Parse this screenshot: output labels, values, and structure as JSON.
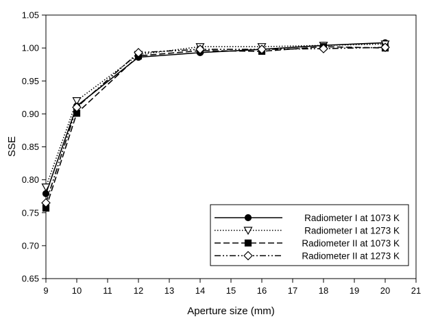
{
  "chart_data": {
    "type": "line",
    "title": "",
    "xlabel": "Aperture size (mm)",
    "ylabel": "SSE",
    "xlim": [
      9,
      21
    ],
    "ylim": [
      0.65,
      1.05
    ],
    "x_ticks": [
      9,
      10,
      11,
      12,
      13,
      14,
      15,
      16,
      17,
      18,
      19,
      20,
      21
    ],
    "y_ticks": [
      "0.65",
      "0.70",
      "0.75",
      "0.80",
      "0.85",
      "0.90",
      "0.95",
      "1.00",
      "1.05"
    ],
    "grid": false,
    "legend_position": "bottom-right",
    "x": [
      9,
      10,
      12,
      14,
      16,
      18,
      20
    ],
    "series": [
      {
        "name": "Radiometer I at 1073 K",
        "values": [
          0.779,
          0.912,
          0.986,
          0.993,
          0.998,
          1.004,
          1.008
        ],
        "dash": "solid",
        "marker": "circle",
        "fill": "#000000"
      },
      {
        "name": "Radiometer I at 1273 K",
        "values": [
          0.789,
          0.92,
          0.99,
          1.002,
          1.002,
          1.004,
          1.006
        ],
        "dash": "dotted",
        "marker": "triangle-down",
        "fill": "#ffffff"
      },
      {
        "name": "Radiometer II at 1073 K",
        "values": [
          0.757,
          0.901,
          0.988,
          0.996,
          0.995,
          1.002,
          1.0
        ],
        "dash": "dashed",
        "marker": "square",
        "fill": "#000000"
      },
      {
        "name": "Radiometer II at 1273 K",
        "values": [
          0.765,
          0.91,
          0.993,
          0.998,
          0.998,
          0.999,
          1.001
        ],
        "dash": "dash-dot-dot",
        "marker": "diamond",
        "fill": "#ffffff"
      }
    ]
  }
}
